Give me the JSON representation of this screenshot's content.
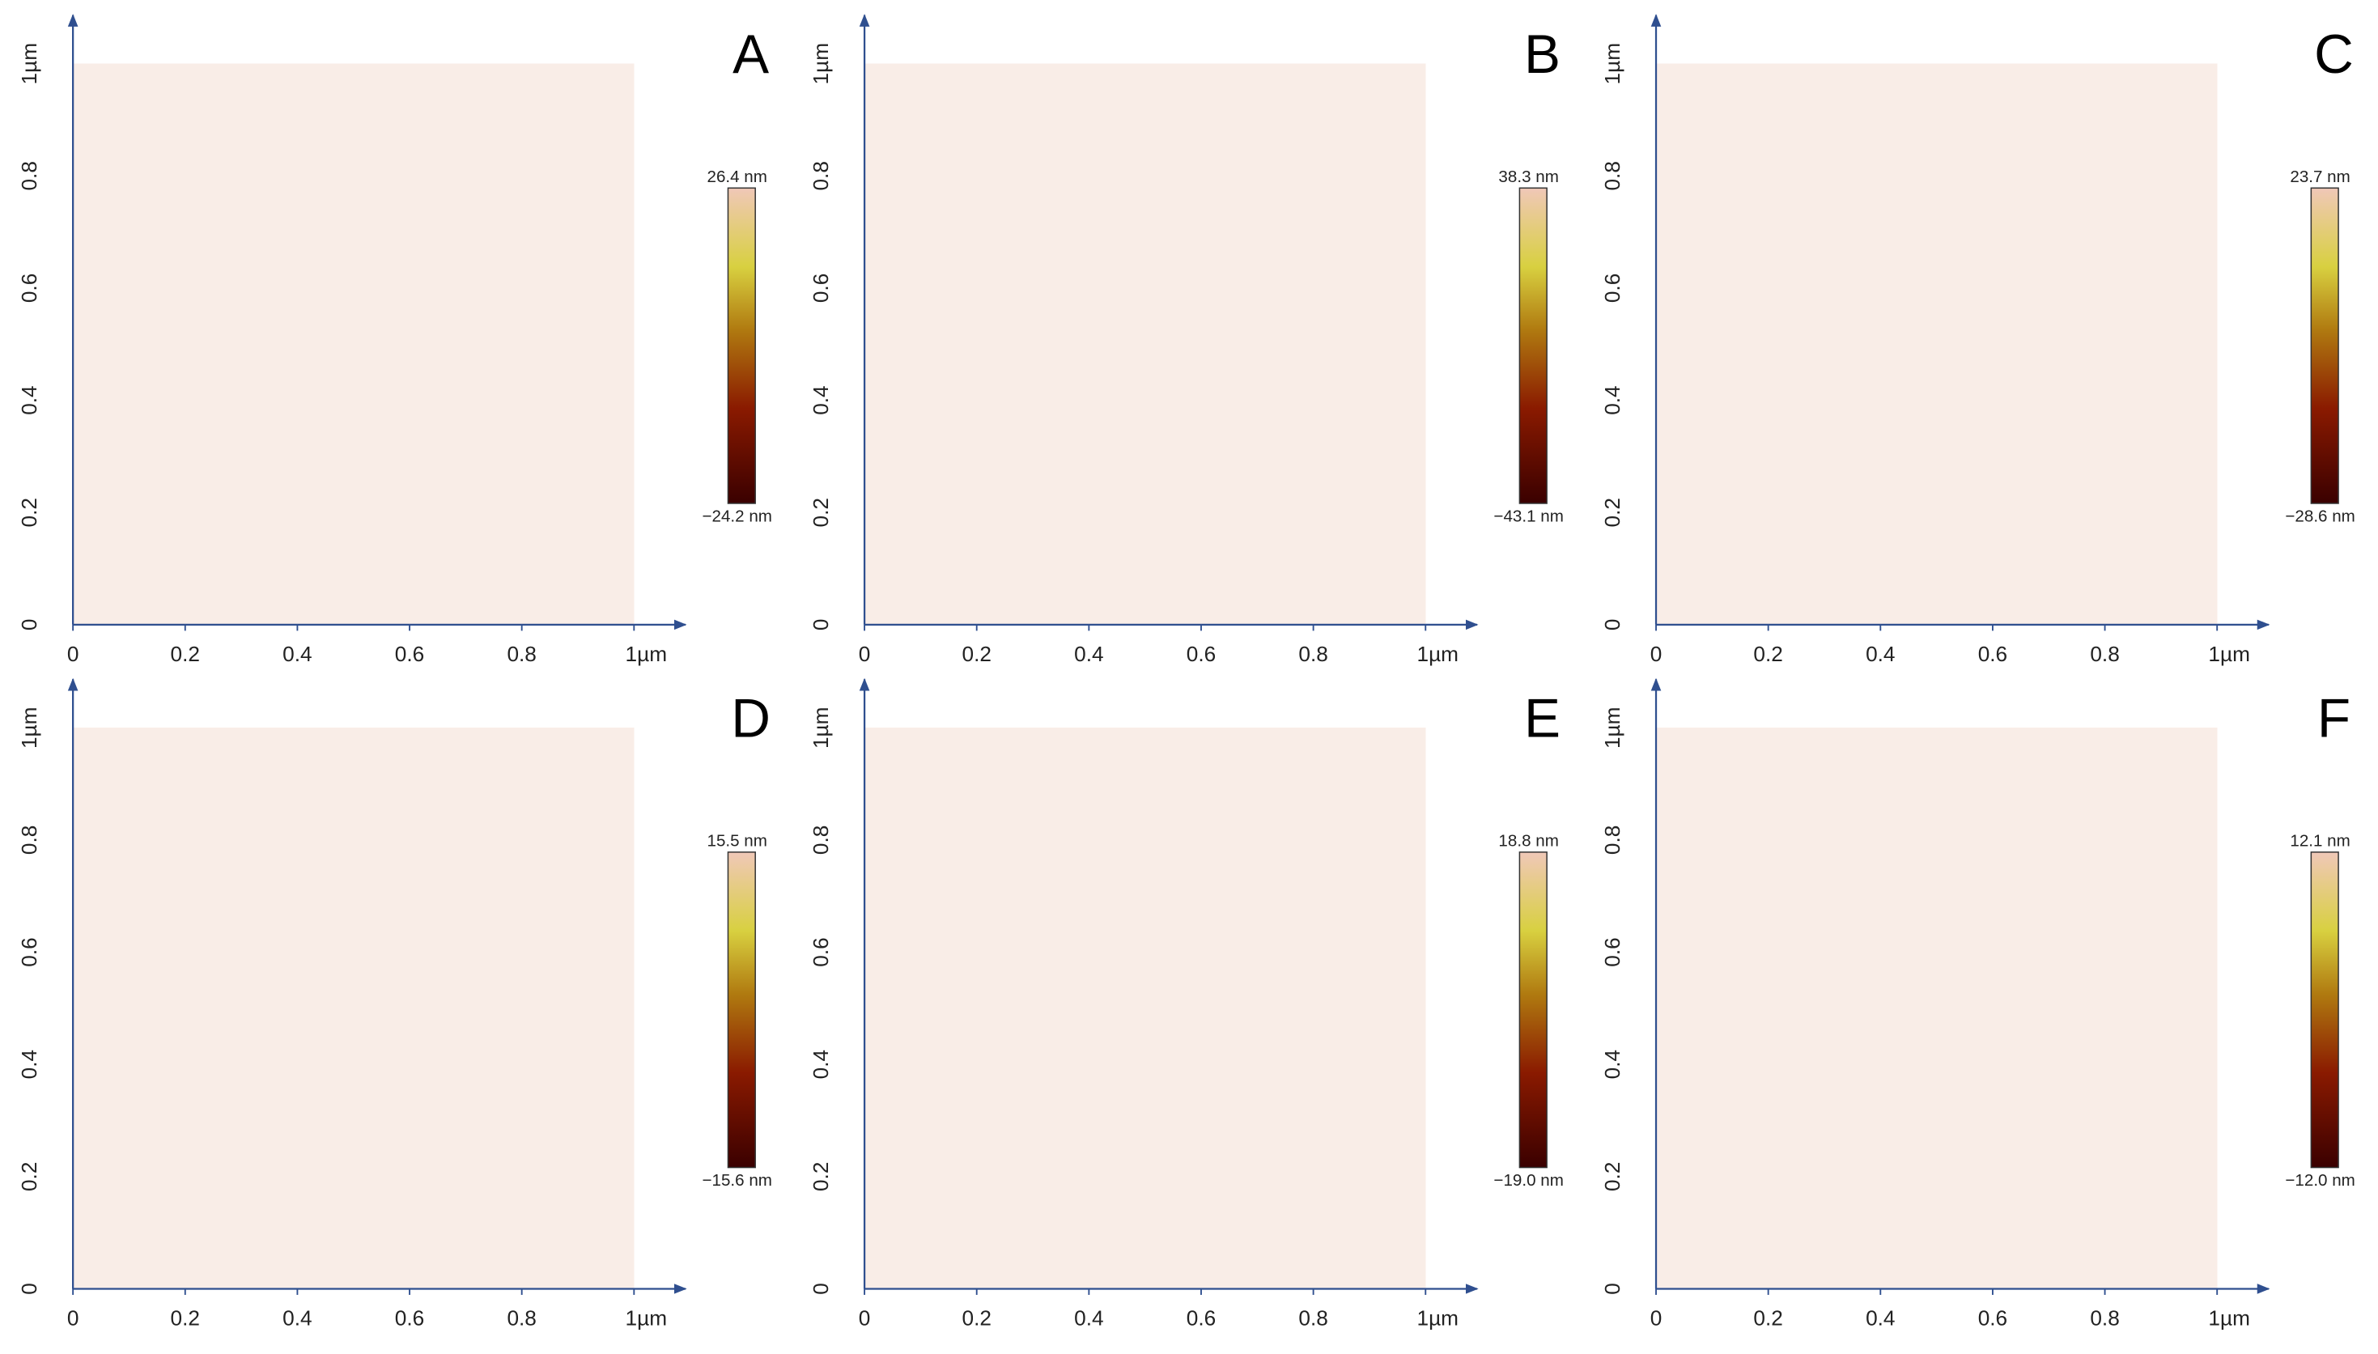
{
  "axis_ticks": [
    "0",
    "0.2",
    "0.4",
    "0.6",
    "0.8",
    "1µm"
  ],
  "panels": [
    {
      "letter": "A",
      "colorbar": {
        "max": "26.4 nm",
        "min": "−24.2 nm"
      }
    },
    {
      "letter": "B",
      "colorbar": {
        "max": "38.3 nm",
        "min": "−43.1 nm"
      }
    },
    {
      "letter": "C",
      "colorbar": {
        "max": "23.7 nm",
        "min": "−28.6 nm"
      }
    },
    {
      "letter": "D",
      "colorbar": {
        "max": "15.5 nm",
        "min": "−15.6 nm"
      }
    },
    {
      "letter": "E",
      "colorbar": {
        "max": "18.8 nm",
        "min": "−19.0 nm"
      }
    },
    {
      "letter": "F",
      "colorbar": {
        "max": "12.1 nm",
        "min": "−12.0 nm"
      }
    }
  ]
}
